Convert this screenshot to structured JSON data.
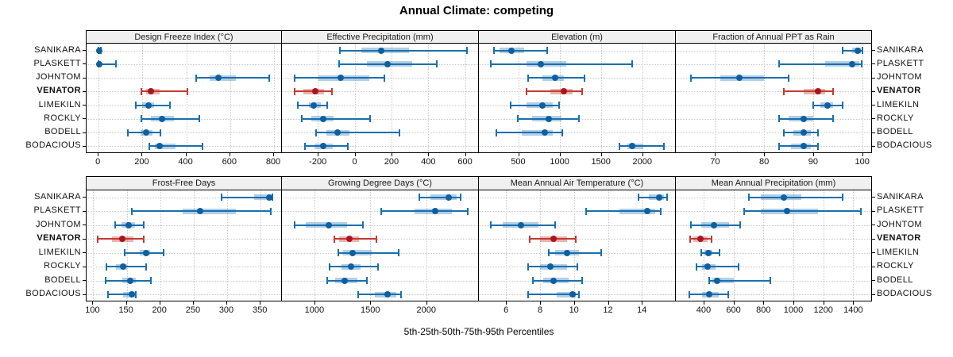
{
  "title": "Annual Climate: competing",
  "caption": "5th-25th-50th-75th-95th Percentiles",
  "sites": [
    "SANIKARA",
    "PLASKETT",
    "JOHNTOM",
    "VENATOR",
    "LIMEKILN",
    "ROCKLY",
    "BODELL",
    "BODACIOUS"
  ],
  "highlight_site": "VENATOR",
  "colors": {
    "normal_line": "#1a6faf",
    "normal_band": "rgba(49,130,189,0.38)",
    "normal_dot": "#0f5f9f",
    "highlight_line": "#c53a32",
    "highlight_band": "rgba(197,58,50,0.38)",
    "highlight_dot": "#a8161f",
    "strip_bg": "#f0f0f0",
    "grid": "#c9c9c9"
  },
  "chart_data": {
    "type": "dotplot_percentiles",
    "percentiles": [
      5,
      25,
      50,
      75,
      95
    ],
    "layout": {
      "rows": 2,
      "cols": 4,
      "grid": "dotted",
      "highlight_note": "VENATOR row drawn in red, all other sites blue"
    },
    "panels": [
      {
        "title": "Design Freeze Index (°C)",
        "xlim": [
          -55,
          840
        ],
        "ticks": [
          0,
          200,
          400,
          600,
          800
        ],
        "values": [
          [
            -2,
            0,
            2,
            5,
            10
          ],
          [
            -2,
            0,
            3,
            12,
            78
          ],
          [
            445,
            505,
            545,
            625,
            780
          ],
          [
            195,
            215,
            240,
            280,
            405
          ],
          [
            168,
            200,
            228,
            252,
            325
          ],
          [
            195,
            240,
            290,
            345,
            460
          ],
          [
            135,
            190,
            215,
            245,
            280
          ],
          [
            230,
            255,
            278,
            350,
            475
          ]
        ]
      },
      {
        "title": "Effective Precipitation (mm)",
        "xlim": [
          -395,
          675
        ],
        "ticks": [
          -200,
          0,
          200,
          400,
          600
        ],
        "values": [
          [
            -82,
            35,
            143,
            295,
            608
          ],
          [
            -85,
            65,
            180,
            315,
            445
          ],
          [
            -325,
            -195,
            -78,
            78,
            160
          ],
          [
            -325,
            -280,
            -215,
            -165,
            -122
          ],
          [
            -308,
            -250,
            -222,
            -185,
            -150
          ],
          [
            -287,
            -235,
            -170,
            -115,
            85
          ],
          [
            -208,
            -155,
            -93,
            -30,
            243
          ],
          [
            -272,
            -218,
            -172,
            -120,
            -38
          ]
        ]
      },
      {
        "title": "Elevation (m)",
        "xlim": [
          25,
          2405
        ],
        "ticks": [
          500,
          1000,
          1500,
          2000
        ],
        "values": [
          [
            210,
            270,
            415,
            575,
            850
          ],
          [
            170,
            600,
            775,
            1080,
            1875
          ],
          [
            620,
            795,
            950,
            1050,
            1305
          ],
          [
            605,
            890,
            1050,
            1160,
            1275
          ],
          [
            405,
            600,
            795,
            920,
            995
          ],
          [
            490,
            670,
            870,
            1020,
            1235
          ],
          [
            240,
            540,
            825,
            920,
            1035
          ],
          [
            1725,
            1820,
            1875,
            2010,
            2265
          ]
        ]
      },
      {
        "title": "Fraction of Annual PPT as Rain",
        "xlim": [
          62,
          102
        ],
        "ticks": [
          70,
          80,
          90,
          100
        ],
        "values": [
          [
            96,
            98,
            99,
            99.7,
            100
          ],
          [
            83,
            92.5,
            98,
            99.4,
            99.9
          ],
          [
            65,
            71,
            75,
            80,
            85
          ],
          [
            84,
            88,
            91,
            92.5,
            94
          ],
          [
            90,
            91.5,
            93,
            94,
            96
          ],
          [
            83,
            85,
            88,
            90,
            94
          ],
          [
            84,
            86,
            88,
            89.5,
            91
          ],
          [
            83,
            85.5,
            88,
            89.5,
            91
          ]
        ]
      },
      {
        "title": "Frost-Free Days",
        "xlim": [
          90,
          383
        ],
        "ticks": [
          100,
          150,
          200,
          250,
          300,
          350
        ],
        "values": [
          [
            292,
            340,
            363,
            365,
            367
          ],
          [
            157,
            234,
            260,
            313,
            365
          ],
          [
            133,
            142,
            153,
            163,
            175
          ],
          [
            107,
            128,
            143,
            160,
            175
          ],
          [
            147,
            169,
            179,
            185,
            205
          ],
          [
            120,
            134,
            145,
            151,
            179
          ],
          [
            119,
            143,
            155,
            163,
            186
          ],
          [
            122,
            145,
            157,
            162,
            164
          ]
        ]
      },
      {
        "title": "Growing Degree Days (°C)",
        "xlim": [
          710,
          2470
        ],
        "ticks": [
          1000,
          1500,
          2000
        ],
        "values": [
          [
            1940,
            2040,
            2200,
            2270,
            2305
          ],
          [
            1600,
            1895,
            2080,
            2225,
            2370
          ],
          [
            820,
            925,
            1130,
            1290,
            1430
          ],
          [
            1175,
            1220,
            1310,
            1400,
            1555
          ],
          [
            1215,
            1255,
            1340,
            1515,
            1750
          ],
          [
            1135,
            1245,
            1325,
            1410,
            1570
          ],
          [
            1115,
            1185,
            1270,
            1385,
            1470
          ],
          [
            1390,
            1540,
            1655,
            1730,
            1775
          ]
        ]
      },
      {
        "title": "Mean Annual Air Temperature (°C)",
        "xlim": [
          4.4,
          16
        ],
        "ticks": [
          6,
          8,
          10,
          12,
          14
        ],
        "values": [
          [
            13.8,
            14.4,
            15.0,
            15.3,
            15.5
          ],
          [
            10.7,
            12.7,
            14.3,
            14.8,
            15.1
          ],
          [
            5.1,
            5.8,
            6.9,
            7.9,
            8.9
          ],
          [
            7.4,
            8.0,
            8.8,
            9.6,
            10.1
          ],
          [
            8.5,
            8.9,
            9.6,
            10.3,
            11.6
          ],
          [
            7.3,
            8.0,
            8.6,
            9.6,
            10.2
          ],
          [
            7.6,
            8.2,
            8.8,
            9.7,
            10.5
          ],
          [
            7.3,
            9.0,
            9.9,
            10.1,
            10.3
          ]
        ]
      },
      {
        "title": "Mean Annual Precipitation (mm)",
        "xlim": [
          215,
          1525
        ],
        "ticks": [
          400,
          600,
          800,
          1000,
          1200,
          1400
        ],
        "values": [
          [
            705,
            780,
            935,
            1055,
            1330
          ],
          [
            670,
            780,
            955,
            1165,
            1450
          ],
          [
            315,
            385,
            470,
            570,
            645
          ],
          [
            310,
            330,
            377,
            425,
            455
          ],
          [
            382,
            405,
            432,
            462,
            505
          ],
          [
            355,
            390,
            427,
            480,
            635
          ],
          [
            435,
            460,
            490,
            605,
            845
          ],
          [
            303,
            390,
            440,
            500,
            565
          ]
        ]
      }
    ]
  }
}
